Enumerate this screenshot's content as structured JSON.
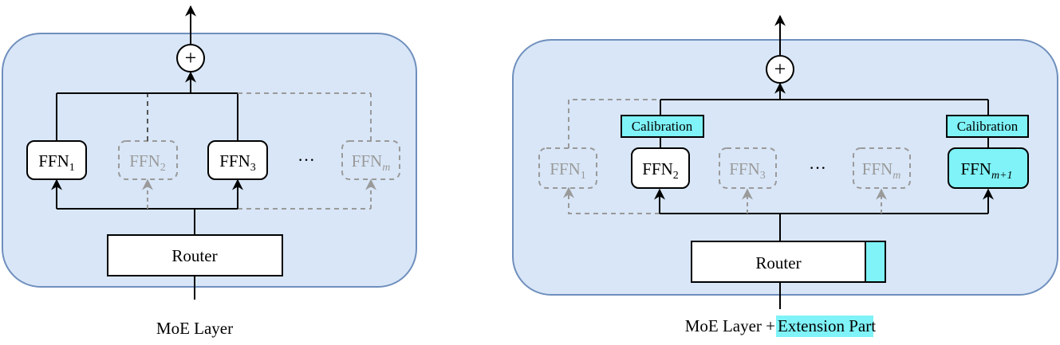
{
  "colors": {
    "panel_fill": "#d8e6f7",
    "panel_stroke": "#6f8fbd",
    "active": "#000000",
    "inactive": "#9a9a9a",
    "highlight": "#7ff3f7"
  },
  "left": {
    "caption": "MoE Layer",
    "router_label": "Router",
    "ellipsis": "···",
    "plus": "+",
    "ffn_base": "FFN",
    "experts": [
      {
        "sub": "1",
        "active": true
      },
      {
        "sub": "2",
        "active": false
      },
      {
        "sub": "3",
        "active": true
      },
      {
        "sub": "m",
        "active": false
      }
    ]
  },
  "right": {
    "caption_main": "MoE Layer + ",
    "caption_highlight": "Extension Part",
    "router_label": "Router",
    "ellipsis": "···",
    "plus": "+",
    "calibration_label": "Calibration",
    "ffn_base": "FFN",
    "experts": [
      {
        "sub": "1",
        "active": false
      },
      {
        "sub": "2",
        "active": true
      },
      {
        "sub": "3",
        "active": false
      },
      {
        "sub": "m",
        "active": false
      },
      {
        "sub": "m+1",
        "active": true,
        "new": true
      }
    ]
  }
}
